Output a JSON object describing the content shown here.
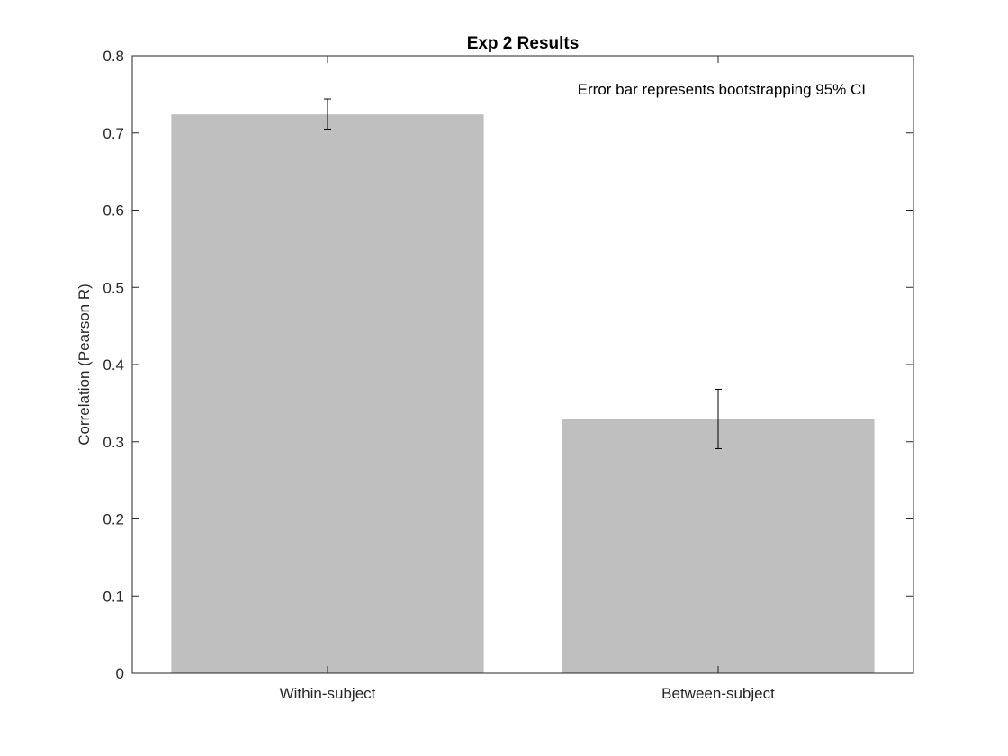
{
  "chart_data": {
    "type": "bar",
    "title": "Exp 2 Results",
    "xlabel": "",
    "ylabel": "Correlation (Pearson R)",
    "categories": [
      "Within-subject",
      "Between-subject"
    ],
    "values": [
      0.724,
      0.33
    ],
    "error_bars": [
      {
        "lower": 0.705,
        "upper": 0.744
      },
      {
        "lower": 0.291,
        "upper": 0.368
      }
    ],
    "ylim": [
      0,
      0.8
    ],
    "yticks": [
      "0",
      "0.1",
      "0.2",
      "0.3",
      "0.4",
      "0.5",
      "0.6",
      "0.7",
      "0.8"
    ],
    "annotation": "Error bar represents bootstrapping 95% CI",
    "grid": false,
    "bar_color": "#bfbfbf",
    "error_bar_color": "#000000"
  }
}
